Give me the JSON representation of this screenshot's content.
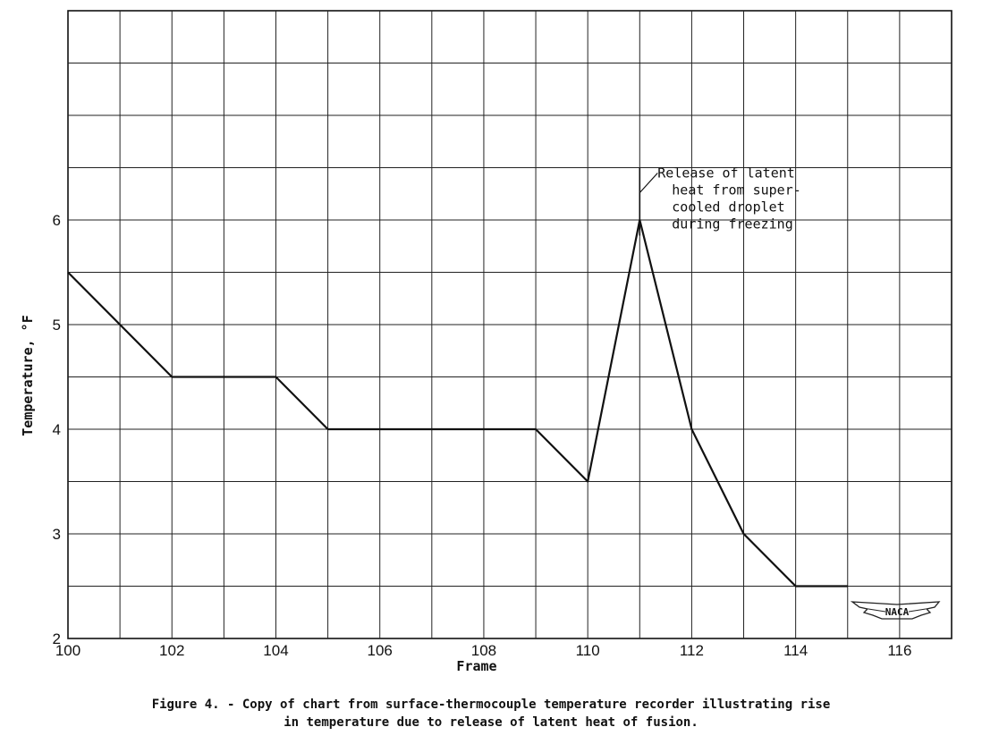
{
  "chart_data": {
    "type": "line",
    "xlabel": "Frame",
    "ylabel": "Temperature, °F",
    "xlim": [
      100,
      117
    ],
    "ylim": [
      2,
      8
    ],
    "x_ticks": [
      "100",
      "102",
      "104",
      "106",
      "108",
      "110",
      "112",
      "114",
      "116"
    ],
    "y_ticks": [
      "2",
      "3",
      "4",
      "5",
      "6"
    ],
    "grid": true,
    "series": [
      {
        "x": [
          100,
          101,
          102,
          104,
          105,
          109,
          110,
          111,
          112,
          113,
          114,
          115
        ],
        "y": [
          5.5,
          5.0,
          4.5,
          4.5,
          4.0,
          4.0,
          3.5,
          6.0,
          4.0,
          3.0,
          2.5,
          2.5
        ]
      }
    ],
    "annotation": {
      "x": 111,
      "lines": [
        "Release of latent",
        "heat from super-",
        "cooled droplet",
        "during freezing"
      ]
    },
    "caption_lines": [
      "Figure 4. - Copy of chart from surface-thermocouple temperature recorder illustrating rise",
      "in temperature due to release of latent heat of fusion."
    ],
    "logo_text": "NACA"
  }
}
